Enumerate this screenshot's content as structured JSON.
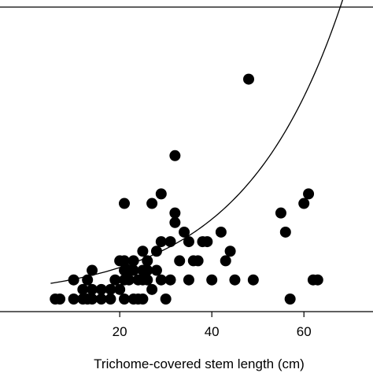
{
  "chart_data": {
    "type": "scatter",
    "title": "",
    "xlabel": "Trichome-covered stem length (cm)",
    "ylabel": "",
    "xlim": [
      -6,
      75
    ],
    "ylim": [
      0,
      27
    ],
    "xticks": [
      20,
      40,
      60
    ],
    "grid": false,
    "legend": "none",
    "colors": {
      "points": "#000000",
      "fit": "#000000",
      "axes": "#000000"
    },
    "series": [
      {
        "points": [
          [
            6,
            0
          ],
          [
            7,
            0
          ],
          [
            10,
            0
          ],
          [
            12,
            0
          ],
          [
            13,
            0
          ],
          [
            14,
            0
          ],
          [
            16,
            0
          ],
          [
            18,
            0
          ],
          [
            21,
            0
          ],
          [
            23,
            0
          ],
          [
            25,
            0
          ],
          [
            30,
            0
          ],
          [
            57,
            0
          ],
          [
            10,
            2
          ],
          [
            12,
            1
          ],
          [
            14,
            1
          ],
          [
            16,
            1
          ],
          [
            18,
            1
          ],
          [
            20,
            1
          ],
          [
            24,
            0
          ],
          [
            27,
            1
          ],
          [
            13,
            2
          ],
          [
            19,
            2
          ],
          [
            21,
            2
          ],
          [
            22,
            2
          ],
          [
            24,
            2
          ],
          [
            25,
            2
          ],
          [
            26,
            2
          ],
          [
            29,
            2
          ],
          [
            31,
            2
          ],
          [
            35,
            2
          ],
          [
            40,
            2
          ],
          [
            45,
            2
          ],
          [
            49,
            2
          ],
          [
            62,
            2
          ],
          [
            63,
            2
          ],
          [
            14,
            3
          ],
          [
            21,
            3
          ],
          [
            22,
            3
          ],
          [
            23,
            3
          ],
          [
            25,
            3
          ],
          [
            26,
            3
          ],
          [
            28,
            3
          ],
          [
            20,
            4
          ],
          [
            21,
            4
          ],
          [
            23,
            4
          ],
          [
            26,
            4
          ],
          [
            33,
            4
          ],
          [
            36,
            4
          ],
          [
            37,
            4
          ],
          [
            43,
            4
          ],
          [
            25,
            5
          ],
          [
            28,
            5
          ],
          [
            44,
            5
          ],
          [
            29,
            6
          ],
          [
            31,
            6
          ],
          [
            35,
            6
          ],
          [
            38,
            6
          ],
          [
            39,
            6
          ],
          [
            34,
            7
          ],
          [
            42,
            7
          ],
          [
            56,
            7
          ],
          [
            32,
            8
          ],
          [
            55,
            9
          ],
          [
            32,
            9
          ],
          [
            21,
            10
          ],
          [
            27,
            10
          ],
          [
            60,
            10
          ],
          [
            29,
            11
          ],
          [
            61,
            11
          ],
          [
            32,
            15
          ],
          [
            48,
            23
          ]
        ]
      }
    ],
    "fit_curve": {
      "form": "exponential",
      "a": 1.3,
      "b": 0.0465
    }
  }
}
